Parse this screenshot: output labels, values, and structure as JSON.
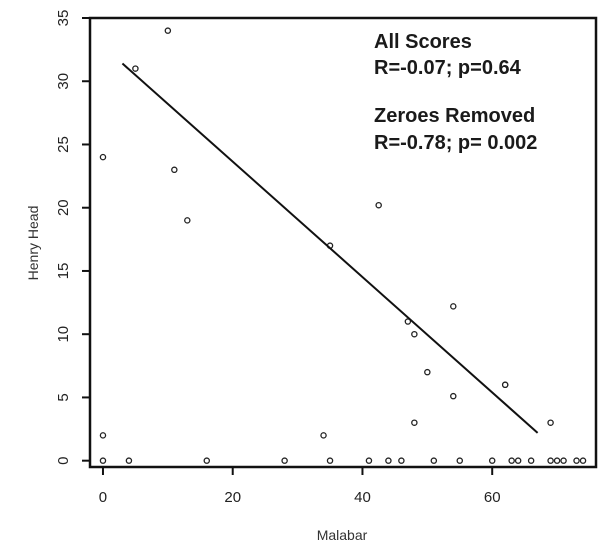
{
  "colors": {
    "background": "#ffffff",
    "axis": "#111111",
    "points": "#222222",
    "fit_line": "#111111",
    "text": "#1a1a1a"
  },
  "chart_data": {
    "type": "scatter",
    "xlabel": "Malabar",
    "ylabel": "Henry Head",
    "xlim": [
      -2,
      76
    ],
    "ylim": [
      -0.5,
      35
    ],
    "xticks": [
      0,
      20,
      40,
      60
    ],
    "yticks": [
      0,
      5,
      10,
      15,
      20,
      25,
      30,
      35
    ],
    "grid": false,
    "annotations": [
      {
        "title": "All Scores",
        "text": "R=-0.07; p=0.64"
      },
      {
        "title": "Zeroes Removed",
        "text": "R=-0.78; p= 0.002"
      }
    ],
    "fit_line": {
      "x": [
        3,
        67
      ],
      "y": [
        31.4,
        2.2
      ]
    },
    "points": [
      {
        "x": 0,
        "y": 24
      },
      {
        "x": 0,
        "y": 2
      },
      {
        "x": 0,
        "y": 0
      },
      {
        "x": 4,
        "y": 0
      },
      {
        "x": 5,
        "y": 31
      },
      {
        "x": 10,
        "y": 34
      },
      {
        "x": 11,
        "y": 23
      },
      {
        "x": 13,
        "y": 19
      },
      {
        "x": 16,
        "y": 0
      },
      {
        "x": 28,
        "y": 0
      },
      {
        "x": 34,
        "y": 2
      },
      {
        "x": 35,
        "y": 17
      },
      {
        "x": 35,
        "y": 0
      },
      {
        "x": 41,
        "y": 0
      },
      {
        "x": 42.5,
        "y": 20.2
      },
      {
        "x": 44,
        "y": 0
      },
      {
        "x": 46,
        "y": 0
      },
      {
        "x": 47,
        "y": 11
      },
      {
        "x": 48,
        "y": 10
      },
      {
        "x": 48,
        "y": 3
      },
      {
        "x": 50,
        "y": 7
      },
      {
        "x": 51,
        "y": 0
      },
      {
        "x": 54,
        "y": 12.2
      },
      {
        "x": 54,
        "y": 5.1
      },
      {
        "x": 55,
        "y": 0
      },
      {
        "x": 60,
        "y": 0
      },
      {
        "x": 62,
        "y": 6
      },
      {
        "x": 62,
        "y": 6
      },
      {
        "x": 63,
        "y": 0
      },
      {
        "x": 64,
        "y": 0
      },
      {
        "x": 66,
        "y": 0
      },
      {
        "x": 69,
        "y": 3
      },
      {
        "x": 69,
        "y": 0
      },
      {
        "x": 70,
        "y": 0
      },
      {
        "x": 71,
        "y": 0
      },
      {
        "x": 73,
        "y": 0
      },
      {
        "x": 74,
        "y": 0
      }
    ]
  }
}
